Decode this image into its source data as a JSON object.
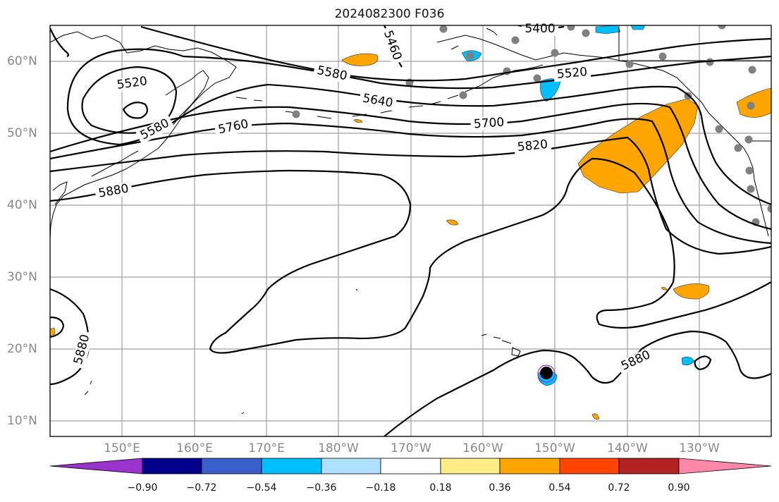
{
  "title": "2024082300 F036",
  "lat_labels": [
    "60°N",
    "50°N",
    "40°N",
    "30°N",
    "20°N",
    "10°N"
  ],
  "lon_labels": [
    "150°E",
    "160°E",
    "170°E",
    "180°W",
    "170°W",
    "160°W",
    "150°W",
    "140°W",
    "130°W"
  ],
  "contour_labels": [
    "5520",
    "5580",
    "5460",
    "5400",
    "5580",
    "5640",
    "5520",
    "5700",
    "5760",
    "5820",
    "5880",
    "5880",
    "5880"
  ],
  "colorbar": {
    "ticks": [
      "−0.90",
      "−0.72",
      "−0.54",
      "−0.36",
      "−0.18",
      "0.18",
      "0.36",
      "0.54",
      "0.72",
      "0.90"
    ],
    "colors": [
      "#9933cc",
      "#00008b",
      "#3a5fcd",
      "#00bfff",
      "#b0e0ff",
      "#ffffff",
      "#ffee88",
      "#ffa500",
      "#ff4500",
      "#b22222",
      "#ff88aa"
    ]
  },
  "colors": {
    "grid": "#a0a0a0",
    "station": "#808080",
    "positive_fill": "#ffa500",
    "negative_fill": "#00bfff",
    "storm_marker": "#000000"
  }
}
